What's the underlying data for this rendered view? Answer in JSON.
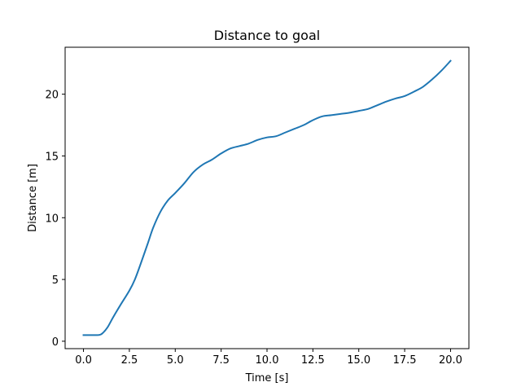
{
  "chart_data": {
    "type": "line",
    "title": "Distance to goal",
    "xlabel": "Time [s]",
    "ylabel": "Distance [m]",
    "xlim": [
      -1.0,
      21.0
    ],
    "ylim": [
      -0.6,
      23.8
    ],
    "xticks": [
      0.0,
      2.5,
      5.0,
      7.5,
      10.0,
      12.5,
      15.0,
      17.5,
      20.0
    ],
    "xtick_labels": [
      "0.0",
      "2.5",
      "5.0",
      "7.5",
      "10.0",
      "12.5",
      "15.0",
      "17.5",
      "20.0"
    ],
    "yticks": [
      0,
      5,
      10,
      15,
      20
    ],
    "ytick_labels": [
      "0",
      "5",
      "10",
      "15",
      "20"
    ],
    "grid": false,
    "series": [
      {
        "color": "#1f77b4",
        "x": [
          0.0,
          0.5,
          0.8,
          1.0,
          1.3,
          1.6,
          2.0,
          2.5,
          2.8,
          3.1,
          3.5,
          3.8,
          4.2,
          4.6,
          5.0,
          5.5,
          6.0,
          6.5,
          7.0,
          7.5,
          8.0,
          8.5,
          9.0,
          9.5,
          10.0,
          10.5,
          11.0,
          11.5,
          12.0,
          12.5,
          13.0,
          13.5,
          14.0,
          14.5,
          15.0,
          15.5,
          16.0,
          16.5,
          17.0,
          17.5,
          18.0,
          18.5,
          19.0,
          19.5,
          20.0
        ],
        "y": [
          0.5,
          0.5,
          0.5,
          0.6,
          1.1,
          1.9,
          2.9,
          4.1,
          5.0,
          6.2,
          7.9,
          9.2,
          10.5,
          11.4,
          12.0,
          12.8,
          13.7,
          14.3,
          14.7,
          15.2,
          15.6,
          15.8,
          16.0,
          16.3,
          16.5,
          16.6,
          16.9,
          17.2,
          17.5,
          17.9,
          18.2,
          18.3,
          18.4,
          18.5,
          18.65,
          18.8,
          19.1,
          19.4,
          19.65,
          19.85,
          20.2,
          20.6,
          21.2,
          21.9,
          22.7
        ]
      }
    ]
  }
}
